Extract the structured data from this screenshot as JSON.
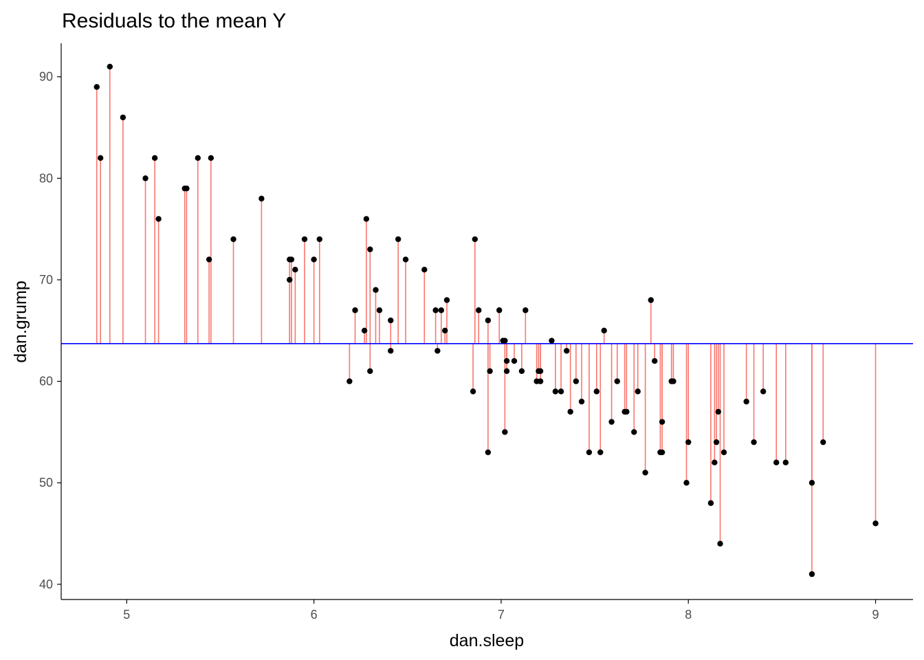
{
  "chart_data": {
    "type": "scatter",
    "title": "Residuals to the mean Y",
    "xlabel": "dan.sleep",
    "ylabel": "dan.grump",
    "xlim": [
      4.65,
      9.2
    ],
    "ylim": [
      38.5,
      93.3
    ],
    "x_ticks": [
      5,
      6,
      7,
      8,
      9
    ],
    "y_ticks": [
      40,
      50,
      60,
      70,
      80,
      90
    ],
    "grid": false,
    "mean_y": 63.71,
    "colors": {
      "mean_line": "#0000ff",
      "residual": "#f8766d",
      "point": "#000000",
      "axis": "#000000",
      "tick_label": "#4d4d4d"
    },
    "points": [
      {
        "x": 4.84,
        "y": 89
      },
      {
        "x": 4.86,
        "y": 82
      },
      {
        "x": 4.91,
        "y": 91
      },
      {
        "x": 4.98,
        "y": 86
      },
      {
        "x": 5.1,
        "y": 80
      },
      {
        "x": 5.15,
        "y": 82
      },
      {
        "x": 5.17,
        "y": 76
      },
      {
        "x": 5.31,
        "y": 79
      },
      {
        "x": 5.32,
        "y": 79
      },
      {
        "x": 5.38,
        "y": 82
      },
      {
        "x": 5.44,
        "y": 72
      },
      {
        "x": 5.45,
        "y": 82
      },
      {
        "x": 5.57,
        "y": 74
      },
      {
        "x": 5.72,
        "y": 78
      },
      {
        "x": 5.87,
        "y": 70
      },
      {
        "x": 5.87,
        "y": 72
      },
      {
        "x": 5.88,
        "y": 72
      },
      {
        "x": 5.9,
        "y": 71
      },
      {
        "x": 5.95,
        "y": 74
      },
      {
        "x": 6.0,
        "y": 72
      },
      {
        "x": 6.03,
        "y": 74
      },
      {
        "x": 6.19,
        "y": 60
      },
      {
        "x": 6.22,
        "y": 67
      },
      {
        "x": 6.27,
        "y": 65
      },
      {
        "x": 6.28,
        "y": 76
      },
      {
        "x": 6.3,
        "y": 73
      },
      {
        "x": 6.3,
        "y": 61
      },
      {
        "x": 6.33,
        "y": 69
      },
      {
        "x": 6.35,
        "y": 67
      },
      {
        "x": 6.41,
        "y": 66
      },
      {
        "x": 6.41,
        "y": 63
      },
      {
        "x": 6.45,
        "y": 74
      },
      {
        "x": 6.49,
        "y": 72
      },
      {
        "x": 6.59,
        "y": 71
      },
      {
        "x": 6.65,
        "y": 67
      },
      {
        "x": 6.66,
        "y": 63
      },
      {
        "x": 6.68,
        "y": 67
      },
      {
        "x": 6.7,
        "y": 65
      },
      {
        "x": 6.71,
        "y": 68
      },
      {
        "x": 6.85,
        "y": 59
      },
      {
        "x": 6.86,
        "y": 74
      },
      {
        "x": 6.88,
        "y": 67
      },
      {
        "x": 6.93,
        "y": 66
      },
      {
        "x": 6.93,
        "y": 53
      },
      {
        "x": 6.94,
        "y": 61
      },
      {
        "x": 6.99,
        "y": 67
      },
      {
        "x": 7.01,
        "y": 64
      },
      {
        "x": 7.02,
        "y": 64
      },
      {
        "x": 7.02,
        "y": 55
      },
      {
        "x": 7.03,
        "y": 62
      },
      {
        "x": 7.03,
        "y": 61
      },
      {
        "x": 7.07,
        "y": 62
      },
      {
        "x": 7.11,
        "y": 61
      },
      {
        "x": 7.13,
        "y": 67
      },
      {
        "x": 7.19,
        "y": 60
      },
      {
        "x": 7.2,
        "y": 61
      },
      {
        "x": 7.21,
        "y": 61
      },
      {
        "x": 7.21,
        "y": 60
      },
      {
        "x": 7.27,
        "y": 64
      },
      {
        "x": 7.29,
        "y": 59
      },
      {
        "x": 7.32,
        "y": 59
      },
      {
        "x": 7.35,
        "y": 63
      },
      {
        "x": 7.37,
        "y": 57
      },
      {
        "x": 7.4,
        "y": 60
      },
      {
        "x": 7.43,
        "y": 58
      },
      {
        "x": 7.47,
        "y": 53
      },
      {
        "x": 7.51,
        "y": 59
      },
      {
        "x": 7.53,
        "y": 53
      },
      {
        "x": 7.55,
        "y": 65
      },
      {
        "x": 7.59,
        "y": 56
      },
      {
        "x": 7.62,
        "y": 60
      },
      {
        "x": 7.66,
        "y": 57
      },
      {
        "x": 7.67,
        "y": 57
      },
      {
        "x": 7.71,
        "y": 55
      },
      {
        "x": 7.73,
        "y": 59
      },
      {
        "x": 7.77,
        "y": 51
      },
      {
        "x": 7.8,
        "y": 68
      },
      {
        "x": 7.82,
        "y": 62
      },
      {
        "x": 7.85,
        "y": 53
      },
      {
        "x": 7.86,
        "y": 53
      },
      {
        "x": 7.86,
        "y": 56
      },
      {
        "x": 7.91,
        "y": 60
      },
      {
        "x": 7.92,
        "y": 60
      },
      {
        "x": 7.99,
        "y": 50
      },
      {
        "x": 8.0,
        "y": 54
      },
      {
        "x": 8.12,
        "y": 48
      },
      {
        "x": 8.14,
        "y": 52
      },
      {
        "x": 8.15,
        "y": 54
      },
      {
        "x": 8.16,
        "y": 57
      },
      {
        "x": 8.17,
        "y": 44
      },
      {
        "x": 8.19,
        "y": 53
      },
      {
        "x": 8.31,
        "y": 58
      },
      {
        "x": 8.35,
        "y": 54
      },
      {
        "x": 8.4,
        "y": 59
      },
      {
        "x": 8.47,
        "y": 52
      },
      {
        "x": 8.52,
        "y": 52
      },
      {
        "x": 8.66,
        "y": 50
      },
      {
        "x": 8.66,
        "y": 41
      },
      {
        "x": 8.72,
        "y": 54
      },
      {
        "x": 9.0,
        "y": 46
      }
    ]
  }
}
